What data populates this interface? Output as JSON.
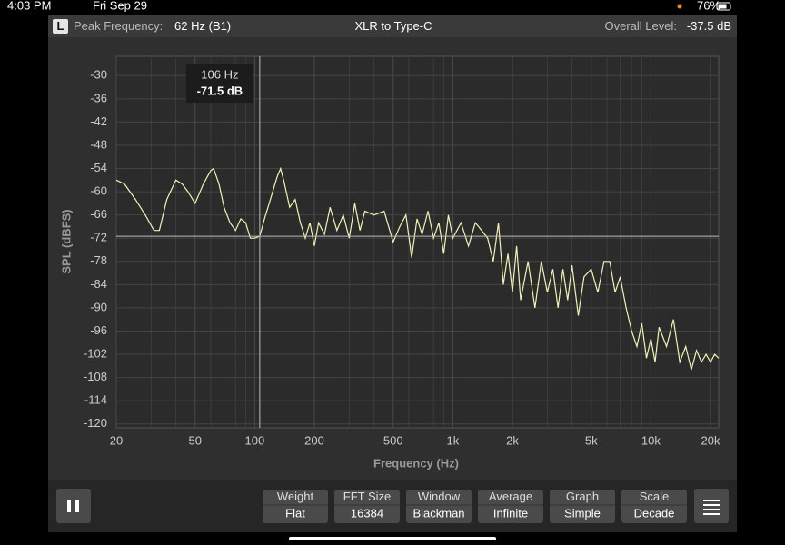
{
  "status_bar": {
    "time": "4:03 PM",
    "date": "Fri Sep 29",
    "battery": "76%"
  },
  "header": {
    "channel": "L",
    "peak_label": "Peak Frequency:",
    "peak_value": "62 Hz (B1)",
    "title": "XLR to Type-C",
    "level_label": "Overall Level:",
    "level_value": "-37.5 dB"
  },
  "chart_data": {
    "type": "line",
    "x_label": "Frequency (Hz)",
    "y_label": "SPL (dBFS)",
    "x_log": true,
    "grid": true,
    "xlim": [
      20,
      22000
    ],
    "ylim": [
      -121,
      -25
    ],
    "xticks": [
      20,
      50,
      100,
      200,
      500,
      {
        "value": 1000,
        "label": "1k"
      },
      {
        "value": 2000,
        "label": "2k"
      },
      {
        "value": 5000,
        "label": "5k"
      },
      {
        "value": 10000,
        "label": "10k"
      },
      {
        "value": 20000,
        "label": "20k"
      }
    ],
    "x_minor_grid": [
      30,
      40,
      60,
      70,
      80,
      90,
      300,
      400,
      600,
      700,
      800,
      900,
      3000,
      4000,
      6000,
      7000,
      8000,
      9000
    ],
    "yticks": [
      -30,
      -36,
      -42,
      -48,
      -54,
      -60,
      -66,
      -72,
      -78,
      -84,
      -90,
      -96,
      -102,
      -108,
      -114,
      -120
    ],
    "cursor": {
      "x": 106,
      "y": -71.5,
      "x_label": "106 Hz",
      "y_label": "-71.5 dB"
    },
    "x": [
      20,
      22,
      25,
      28,
      31,
      33,
      36,
      40,
      43,
      46,
      50,
      55,
      60,
      62,
      66,
      70,
      75,
      80,
      85,
      90,
      95,
      100,
      106,
      112,
      120,
      130,
      135,
      140,
      150,
      160,
      170,
      180,
      190,
      200,
      210,
      225,
      240,
      260,
      280,
      300,
      320,
      340,
      360,
      400,
      450,
      500,
      540,
      580,
      620,
      660,
      700,
      750,
      800,
      850,
      900,
      950,
      1000,
      1100,
      1200,
      1300,
      1400,
      1500,
      1600,
      1700,
      1800,
      1900,
      2000,
      2100,
      2200,
      2400,
      2600,
      2800,
      3000,
      3200,
      3400,
      3600,
      3800,
      4000,
      4300,
      4600,
      5000,
      5400,
      5800,
      6200,
      6600,
      7000,
      7500,
      8000,
      8500,
      9000,
      9500,
      10000,
      10500,
      11000,
      12000,
      13000,
      14000,
      15000,
      16000,
      17000,
      18000,
      19000,
      20000,
      21000,
      22000
    ],
    "series": [
      {
        "color": "#f2f2b4",
        "values": [
          -57,
          -58,
          -62,
          -66,
          -70,
          -70,
          -62,
          -57,
          -58,
          -60,
          -63,
          -58,
          -54.5,
          -54,
          -58,
          -64,
          -68,
          -70,
          -67,
          -68,
          -72,
          -72,
          -71.5,
          -67,
          -62,
          -56,
          -54,
          -57,
          -64,
          -62,
          -68,
          -72,
          -68,
          -74,
          -68,
          -71,
          -64,
          -70,
          -66,
          -72,
          -63,
          -70,
          -65,
          -66,
          -65,
          -73,
          -69,
          -66,
          -77,
          -67,
          -71,
          -65,
          -72,
          -68,
          -76,
          -66,
          -72,
          -68,
          -74,
          -68,
          -70,
          -72,
          -78,
          -68,
          -84,
          -76,
          -86,
          -74,
          -88,
          -78,
          -90,
          -78,
          -86,
          -80,
          -90,
          -80,
          -88,
          -79,
          -92,
          -82,
          -80,
          -86,
          -78,
          -78,
          -86,
          -82,
          -90,
          -96,
          -100,
          -94,
          -103,
          -98,
          -104,
          -95,
          -100,
          -93,
          -104,
          -100,
          -106,
          -101,
          -104,
          -102,
          -104,
          -102,
          -103
        ]
      }
    ]
  },
  "controls": [
    {
      "label": "Weight",
      "value": "Flat"
    },
    {
      "label": "FFT Size",
      "value": "16384"
    },
    {
      "label": "Window",
      "value": "Blackman"
    },
    {
      "label": "Average",
      "value": "Infinite"
    },
    {
      "label": "Graph",
      "value": "Simple"
    },
    {
      "label": "Scale",
      "value": "Decade"
    }
  ]
}
